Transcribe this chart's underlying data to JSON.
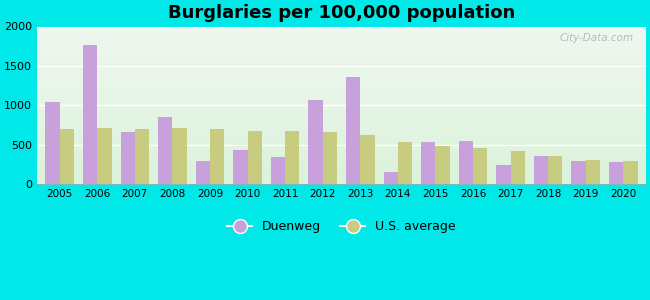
{
  "title": "Burglaries per 100,000 population",
  "years": [
    2005,
    2006,
    2007,
    2008,
    2009,
    2010,
    2011,
    2012,
    2013,
    2014,
    2015,
    2016,
    2017,
    2018,
    2019,
    2020
  ],
  "duenweg": [
    1040,
    1760,
    660,
    850,
    300,
    430,
    340,
    1070,
    1360,
    150,
    540,
    550,
    240,
    360,
    290,
    280
  ],
  "us_average": [
    700,
    710,
    700,
    710,
    700,
    680,
    680,
    660,
    620,
    540,
    490,
    460,
    420,
    360,
    310,
    300
  ],
  "duenweg_color": "#c8a0dc",
  "us_avg_color": "#c8cc80",
  "background_color": "#00e8e8",
  "ylim": [
    0,
    2000
  ],
  "yticks": [
    0,
    500,
    1000,
    1500,
    2000
  ],
  "bar_width": 0.38,
  "legend_duenweg": "Duenweg",
  "legend_us": "U.S. average",
  "watermark": "City-Data.com"
}
